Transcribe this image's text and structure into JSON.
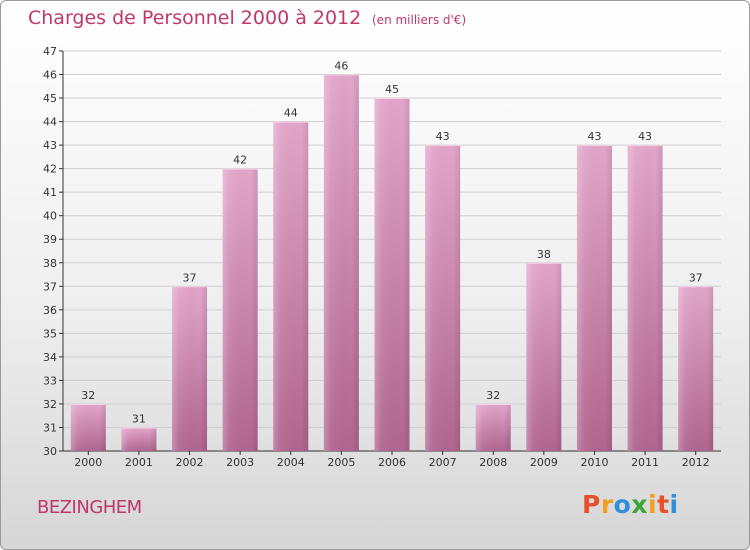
{
  "header": {
    "title": "Charges de Personnel 2000 à 2012",
    "unit_note": "(en milliers d'€)"
  },
  "footer": {
    "city": "BEZINGHEM",
    "logo": "Proxiti"
  },
  "colors": {
    "title": "#c0386a",
    "bar_top": "#e3a6cb",
    "bar_bottom": "#b0658f",
    "grid": "#cfcfcf",
    "logo_letters": [
      "#e8502a",
      "#f0a01e",
      "#2f8fd8",
      "#3aa63a",
      "#f0a01e",
      "#e8502a",
      "#2f8fd8"
    ]
  },
  "chart_data": {
    "type": "bar",
    "title": "Charges de Personnel 2000 à 2012",
    "subtitle": "(en milliers d'€)",
    "categories": [
      "2000",
      "2001",
      "2002",
      "2003",
      "2004",
      "2005",
      "2006",
      "2007",
      "2008",
      "2009",
      "2010",
      "2011",
      "2012"
    ],
    "values": [
      32,
      31,
      37,
      42,
      44,
      46,
      45,
      43,
      32,
      38,
      43,
      43,
      37
    ],
    "ylim": [
      30,
      47
    ],
    "yticks": [
      30,
      31,
      32,
      33,
      34,
      35,
      36,
      37,
      38,
      39,
      40,
      41,
      42,
      43,
      44,
      45,
      46,
      47
    ],
    "grid": true,
    "data_labels": true
  }
}
